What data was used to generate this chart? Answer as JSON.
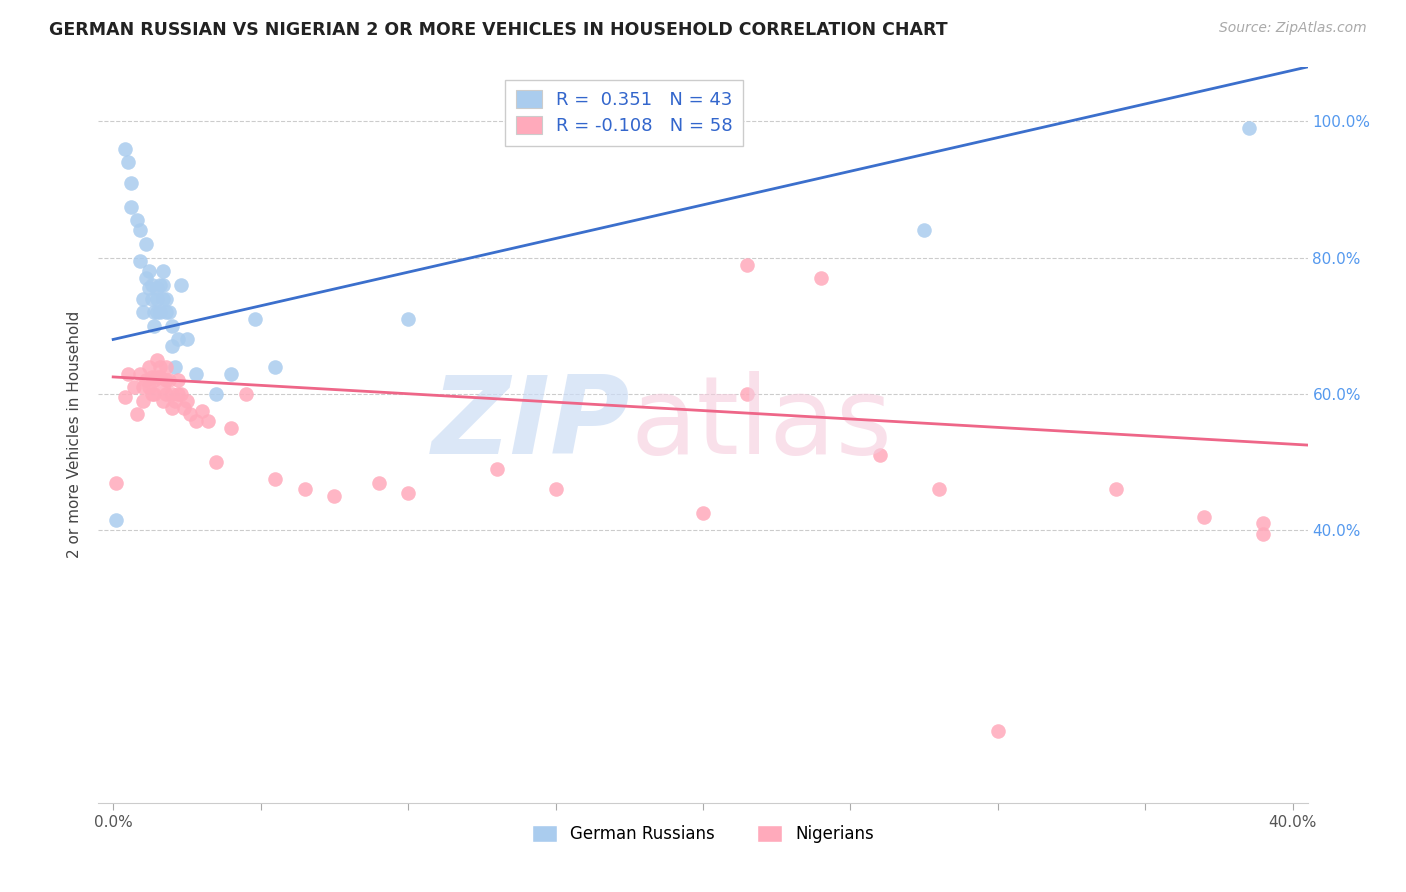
{
  "title": "GERMAN RUSSIAN VS NIGERIAN 2 OR MORE VEHICLES IN HOUSEHOLD CORRELATION CHART",
  "source": "Source: ZipAtlas.com",
  "ylabel": "2 or more Vehicles in Household",
  "xlim": [
    -0.005,
    0.405
  ],
  "ylim": [
    0.0,
    1.08
  ],
  "yticks": [
    0.4,
    0.6,
    0.8,
    1.0
  ],
  "ytick_labels": [
    "40.0%",
    "60.0%",
    "80.0%",
    "100.0%"
  ],
  "xticks": [
    0.0,
    0.05,
    0.1,
    0.15,
    0.2,
    0.25,
    0.3,
    0.35,
    0.4
  ],
  "xtick_labels": [
    "0.0%",
    "",
    "",
    "",
    "",
    "",
    "",
    "",
    "40.0%"
  ],
  "legend_label1": "German Russians",
  "legend_label2": "Nigerians",
  "R1": "0.351",
  "N1": "43",
  "R2": "-0.108",
  "N2": "58",
  "blue_color": "#AACCEE",
  "pink_color": "#FFAABB",
  "line_blue": "#3B6FCC",
  "line_pink": "#EE6688",
  "blue_line_x0": 0.0,
  "blue_line_y0": 0.68,
  "blue_line_x1": 0.405,
  "blue_line_y1": 1.08,
  "pink_line_x0": 0.0,
  "pink_line_y0": 0.625,
  "pink_line_x1": 0.405,
  "pink_line_y1": 0.525,
  "blue_points_x": [
    0.001,
    0.004,
    0.005,
    0.006,
    0.006,
    0.008,
    0.009,
    0.009,
    0.01,
    0.01,
    0.011,
    0.011,
    0.012,
    0.012,
    0.013,
    0.013,
    0.014,
    0.014,
    0.015,
    0.015,
    0.015,
    0.016,
    0.016,
    0.017,
    0.017,
    0.017,
    0.018,
    0.018,
    0.019,
    0.02,
    0.02,
    0.021,
    0.022,
    0.023,
    0.025,
    0.028,
    0.035,
    0.04,
    0.048,
    0.055,
    0.1,
    0.275,
    0.385
  ],
  "blue_points_y": [
    0.415,
    0.96,
    0.94,
    0.91,
    0.875,
    0.855,
    0.84,
    0.795,
    0.74,
    0.72,
    0.82,
    0.77,
    0.78,
    0.755,
    0.76,
    0.74,
    0.72,
    0.7,
    0.755,
    0.74,
    0.72,
    0.76,
    0.72,
    0.78,
    0.76,
    0.74,
    0.74,
    0.72,
    0.72,
    0.7,
    0.67,
    0.64,
    0.68,
    0.76,
    0.68,
    0.63,
    0.6,
    0.63,
    0.71,
    0.64,
    0.71,
    0.84,
    0.99
  ],
  "pink_points_x": [
    0.001,
    0.004,
    0.005,
    0.007,
    0.008,
    0.009,
    0.01,
    0.01,
    0.011,
    0.012,
    0.012,
    0.013,
    0.013,
    0.014,
    0.014,
    0.015,
    0.015,
    0.016,
    0.016,
    0.017,
    0.017,
    0.018,
    0.018,
    0.018,
    0.019,
    0.02,
    0.02,
    0.021,
    0.022,
    0.022,
    0.023,
    0.024,
    0.025,
    0.026,
    0.028,
    0.03,
    0.032,
    0.035,
    0.04,
    0.045,
    0.055,
    0.065,
    0.075,
    0.09,
    0.1,
    0.13,
    0.15,
    0.2,
    0.215,
    0.215,
    0.24,
    0.26,
    0.28,
    0.3,
    0.34,
    0.37,
    0.39,
    0.39
  ],
  "pink_points_y": [
    0.47,
    0.595,
    0.63,
    0.61,
    0.57,
    0.63,
    0.61,
    0.59,
    0.62,
    0.61,
    0.64,
    0.625,
    0.6,
    0.62,
    0.6,
    0.65,
    0.625,
    0.64,
    0.625,
    0.61,
    0.59,
    0.64,
    0.62,
    0.6,
    0.62,
    0.58,
    0.6,
    0.59,
    0.62,
    0.6,
    0.6,
    0.58,
    0.59,
    0.57,
    0.56,
    0.575,
    0.56,
    0.5,
    0.55,
    0.6,
    0.475,
    0.46,
    0.45,
    0.47,
    0.455,
    0.49,
    0.46,
    0.425,
    0.79,
    0.6,
    0.77,
    0.51,
    0.46,
    0.105,
    0.46,
    0.42,
    0.41,
    0.395
  ]
}
